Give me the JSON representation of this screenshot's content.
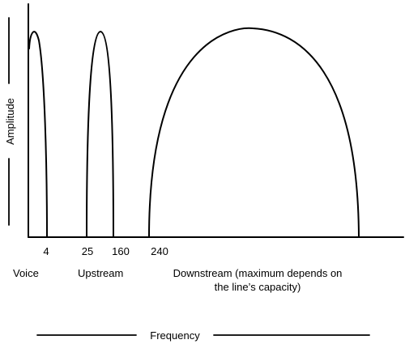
{
  "axes": {
    "y_label": "Amplitude",
    "x_label": "Frequency"
  },
  "ticks": [
    "4",
    "25",
    "160",
    "240"
  ],
  "bands": [
    {
      "label": "Voice"
    },
    {
      "label": "Upstream"
    },
    {
      "label_line1": "Downstream (maximum depends on",
      "label_line2": "the line’s capacity)"
    }
  ]
}
